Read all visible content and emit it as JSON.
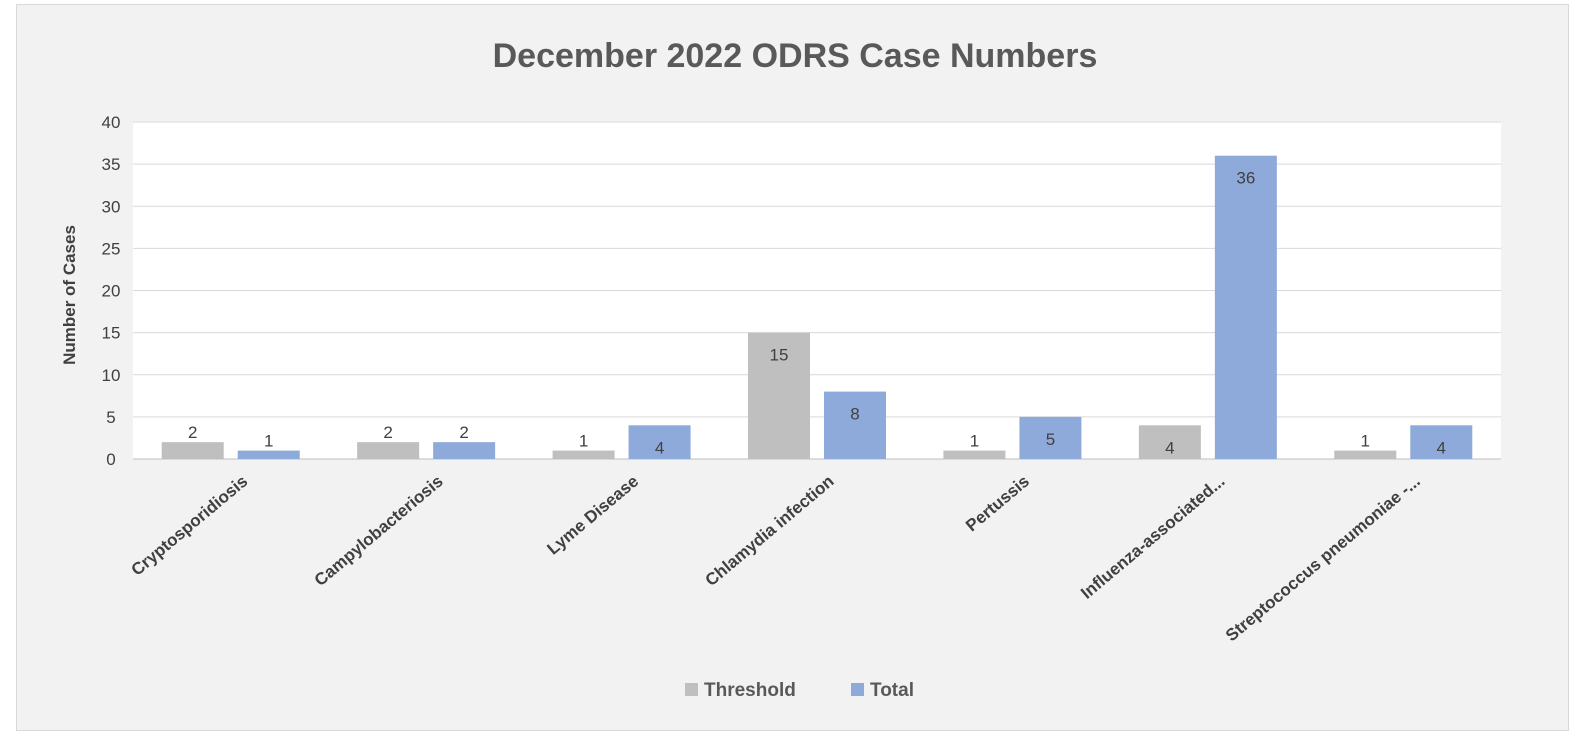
{
  "chart_data": {
    "type": "bar",
    "title": "December 2022 ODRS Case Numbers",
    "xlabel": "",
    "ylabel": "Number of Cases",
    "ylim": [
      0,
      40
    ],
    "yticks": [
      0,
      5,
      10,
      15,
      20,
      25,
      30,
      35,
      40
    ],
    "grid": true,
    "legend_position": "bottom",
    "categories": [
      "Cryptosporidiosis",
      "Campylobacteriosis",
      "Lyme Disease",
      "Chlamydia infection",
      "Pertussis",
      "Influenza-associated...",
      "Streptococcus pneumoniae -..."
    ],
    "series": [
      {
        "name": "Threshold",
        "color": "#bfbfbf",
        "values": [
          2,
          2,
          1,
          15,
          1,
          4,
          1
        ]
      },
      {
        "name": "Total",
        "color": "#8eaadb",
        "values": [
          1,
          2,
          4,
          8,
          5,
          36,
          4
        ]
      }
    ]
  }
}
